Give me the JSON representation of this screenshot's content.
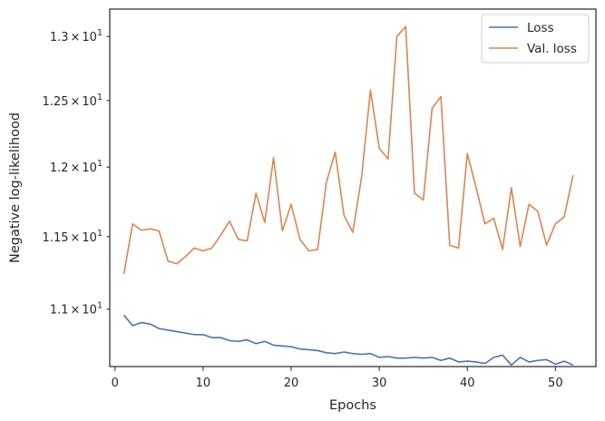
{
  "chart_data": {
    "type": "line",
    "title": "",
    "xlabel": "Epochs",
    "ylabel": "Negative log-likelihood",
    "xlim": [
      -0.6,
      54.6
    ],
    "ylim": [
      10.62,
      13.22
    ],
    "yscale": "log",
    "grid": false,
    "legend_position": "top-right",
    "x_ticks": [
      0,
      10,
      20,
      30,
      40,
      50
    ],
    "x_tick_labels": [
      "0",
      "10",
      "20",
      "30",
      "40",
      "50"
    ],
    "y_ticks": [
      11.0,
      11.5,
      12.0,
      12.5,
      13.0
    ],
    "y_tick_labels": [
      {
        "mant": "1.1",
        "times": "×",
        "base": "10",
        "exp": "1"
      },
      {
        "mant": "1.15",
        "times": "×",
        "base": "10",
        "exp": "1"
      },
      {
        "mant": "1.2",
        "times": "×",
        "base": "10",
        "exp": "1"
      },
      {
        "mant": "1.25",
        "times": "×",
        "base": "10",
        "exp": "1"
      },
      {
        "mant": "1.3",
        "times": "×",
        "base": "10",
        "exp": "1"
      }
    ],
    "x": [
      1,
      2,
      3,
      4,
      5,
      6,
      7,
      8,
      9,
      10,
      11,
      12,
      13,
      14,
      15,
      16,
      17,
      18,
      19,
      20,
      21,
      22,
      23,
      24,
      25,
      26,
      27,
      28,
      29,
      30,
      31,
      32,
      33,
      34,
      35,
      36,
      37,
      38,
      39,
      40,
      41,
      42,
      43,
      44,
      45,
      46,
      47,
      48,
      49,
      50,
      51,
      52
    ],
    "series": [
      {
        "name": "Loss",
        "color": "#4c72b0",
        "values": [
          10.96,
          10.89,
          10.91,
          10.9,
          10.87,
          10.86,
          10.85,
          10.84,
          10.83,
          10.83,
          10.81,
          10.81,
          10.79,
          10.785,
          10.795,
          10.77,
          10.785,
          10.76,
          10.755,
          10.75,
          10.735,
          10.73,
          10.725,
          10.71,
          10.705,
          10.715,
          10.705,
          10.7,
          10.705,
          10.68,
          10.685,
          10.675,
          10.675,
          10.68,
          10.675,
          10.68,
          10.66,
          10.675,
          10.65,
          10.655,
          10.65,
          10.64,
          10.68,
          10.695,
          10.63,
          10.68,
          10.65,
          10.66,
          10.665,
          10.635,
          10.655,
          10.63
        ]
      },
      {
        "name": "Val. loss",
        "color": "#dd8452",
        "values": [
          11.24,
          11.59,
          11.545,
          11.555,
          11.54,
          11.33,
          11.31,
          11.36,
          11.42,
          11.4,
          11.42,
          11.51,
          11.61,
          11.48,
          11.47,
          11.81,
          11.6,
          12.07,
          11.54,
          11.73,
          11.48,
          11.4,
          11.41,
          11.89,
          12.11,
          11.65,
          11.53,
          11.93,
          12.58,
          12.14,
          12.06,
          13.0,
          13.08,
          11.81,
          11.76,
          12.44,
          12.53,
          11.44,
          11.42,
          12.1,
          11.85,
          11.59,
          11.63,
          11.41,
          11.85,
          11.43,
          11.73,
          11.68,
          11.44,
          11.59,
          11.64,
          11.94
        ]
      }
    ]
  }
}
